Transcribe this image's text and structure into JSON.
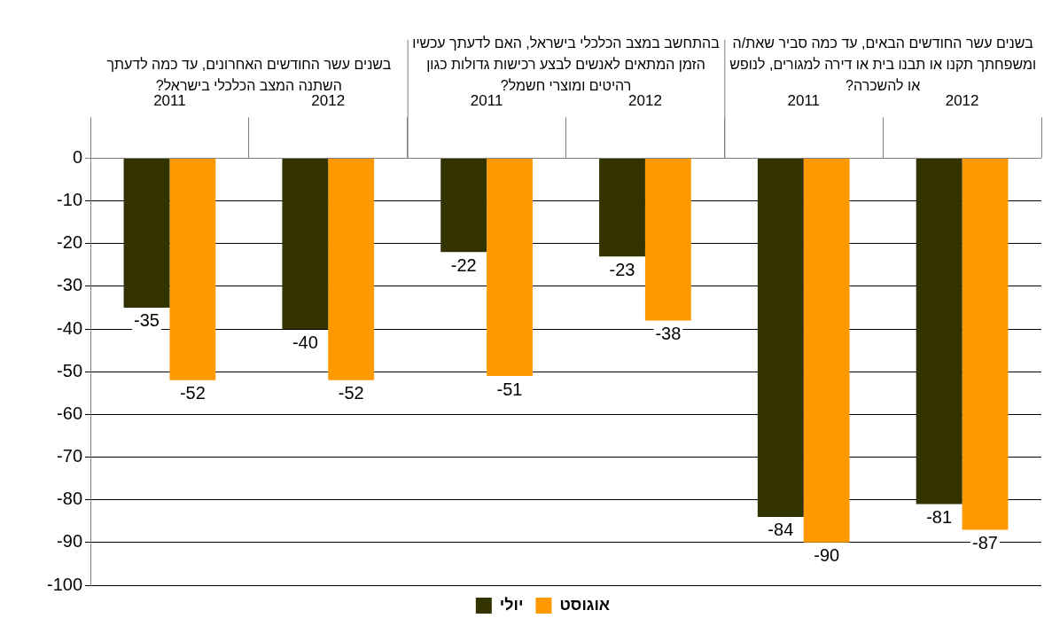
{
  "chart_data": {
    "type": "bar",
    "categories": [
      "2011",
      "2012",
      "2011",
      "2012",
      "2011",
      "2012"
    ],
    "series": [
      {
        "name": "יולי",
        "color": "#333300",
        "values": [
          -35,
          -40,
          -22,
          -23,
          -84,
          -81
        ]
      },
      {
        "name": "אוגוסט",
        "color": "#ff9900",
        "values": [
          -52,
          -52,
          -51,
          -38,
          -90,
          -87
        ]
      }
    ],
    "annotations": [
      "בשנים עשר החודשים האחרונים, עד כמה לדעתך השתנה המצב הכלכלי בישראל?",
      "בהתחשב במצב הכלכלי בישראל, האם לדעתך עכשיו הזמן המתאים לאנשים לבצע רכישות גדולות כגון רהיטים ומוצרי חשמל?",
      "בשנים עשר החודשים הבאים, עד כמה סביר שאת/ה ומשפחתך תקנו או תבנו בית או דירה למגורים, לנופש או להשכרה?"
    ],
    "ylim": [
      -100,
      0
    ],
    "yticks": [
      -100,
      -90,
      -80,
      -70,
      -60,
      -50,
      -40,
      -30,
      -20,
      -10,
      0
    ],
    "grid": "y",
    "legend": "bottom",
    "data_labels": true
  }
}
